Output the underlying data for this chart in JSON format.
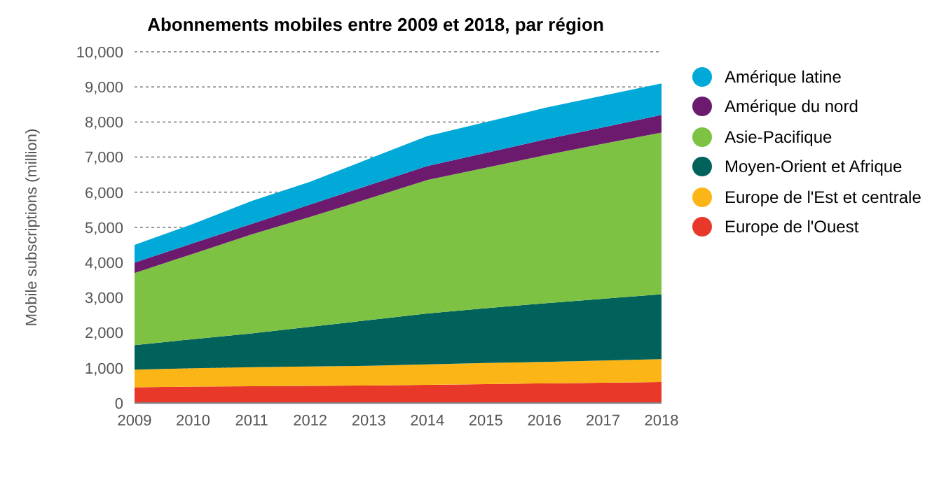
{
  "chart_data": {
    "type": "area",
    "stacked": true,
    "title": "Abonnements mobiles entre 2009 et 2018, par région",
    "ylabel": "Mobile subscriptions (million)",
    "x": [
      2009,
      2010,
      2011,
      2012,
      2013,
      2014,
      2015,
      2016,
      2017,
      2018
    ],
    "xlim": [
      2009,
      2018
    ],
    "xticks": [
      2009,
      2010,
      2011,
      2012,
      2013,
      2014,
      2015,
      2016,
      2017,
      2018
    ],
    "ylim": [
      0,
      10000
    ],
    "yticks": [
      {
        "value": 0,
        "label": "0"
      },
      {
        "value": 1000,
        "label": "1,000"
      },
      {
        "value": 2000,
        "label": "2,000"
      },
      {
        "value": 3000,
        "label": "3,000"
      },
      {
        "value": 4000,
        "label": "4,000"
      },
      {
        "value": 5000,
        "label": "5,000"
      },
      {
        "value": 6000,
        "label": "6,000"
      },
      {
        "value": 7000,
        "label": "7,000"
      },
      {
        "value": 8000,
        "label": "8,000"
      },
      {
        "value": 9000,
        "label": "9,000"
      },
      {
        "value": 10000,
        "label": "10,000"
      }
    ],
    "grid": "y",
    "legend": "right",
    "series": [
      {
        "name": "Europe de l'Ouest",
        "color": "#e8382a",
        "values": [
          450,
          470,
          480,
          490,
          500,
          520,
          540,
          560,
          580,
          600
        ]
      },
      {
        "name": "Europe de l'Est et centrale",
        "color": "#fbb516",
        "values": [
          500,
          520,
          540,
          550,
          560,
          580,
          600,
          610,
          630,
          650
        ]
      },
      {
        "name": "Moyen-Orient et Afrique",
        "color": "#00625a",
        "values": [
          700,
          830,
          960,
          1130,
          1300,
          1450,
          1560,
          1670,
          1760,
          1850
        ]
      },
      {
        "name": "Asie-Pacifique",
        "color": "#7dc242",
        "values": [
          2050,
          2430,
          2820,
          3130,
          3460,
          3800,
          4000,
          4210,
          4410,
          4600
        ]
      },
      {
        "name": "Amérique du nord",
        "color": "#6b1a6e",
        "values": [
          300,
          300,
          300,
          350,
          380,
          400,
          420,
          450,
          470,
          500
        ]
      },
      {
        "name": "Amérique latine",
        "color": "#00a9d8",
        "values": [
          500,
          550,
          650,
          650,
          750,
          850,
          880,
          900,
          900,
          900
        ]
      }
    ]
  }
}
